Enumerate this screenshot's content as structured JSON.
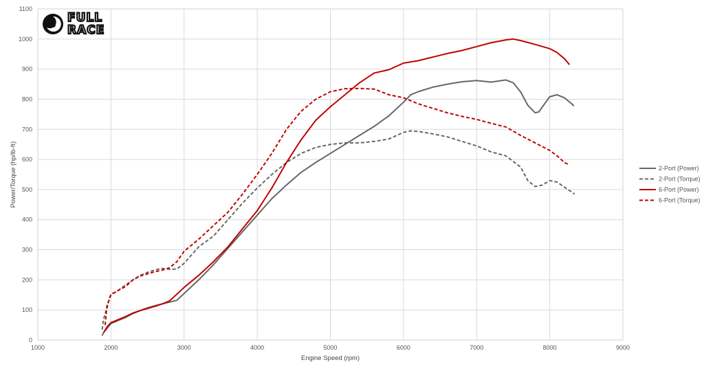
{
  "logo": {
    "line1": "FULL",
    "line2": "RACE"
  },
  "chart_data": {
    "type": "line",
    "xlabel": "Engine Speed (rpm)",
    "ylabel": "Power/Torque (hp/lb-ft)",
    "xlim": [
      1000,
      9000
    ],
    "ylim": [
      0,
      1100
    ],
    "xticks": [
      1000,
      2000,
      3000,
      4000,
      5000,
      6000,
      7000,
      8000,
      9000
    ],
    "yticks": [
      0,
      100,
      200,
      300,
      400,
      500,
      600,
      700,
      800,
      900,
      1000,
      1100
    ],
    "grid": true,
    "legend_position": "right",
    "series": [
      {
        "name": "2-Port (Power)",
        "color": "#666666",
        "dash": false,
        "points": [
          [
            1880,
            15
          ],
          [
            1900,
            25
          ],
          [
            1950,
            40
          ],
          [
            2000,
            55
          ],
          [
            2100,
            65
          ],
          [
            2200,
            75
          ],
          [
            2300,
            88
          ],
          [
            2400,
            98
          ],
          [
            2500,
            107
          ],
          [
            2600,
            114
          ],
          [
            2700,
            120
          ],
          [
            2800,
            126
          ],
          [
            2900,
            132
          ],
          [
            3000,
            155
          ],
          [
            3200,
            200
          ],
          [
            3400,
            250
          ],
          [
            3600,
            305
          ],
          [
            3800,
            360
          ],
          [
            4000,
            415
          ],
          [
            4200,
            470
          ],
          [
            4400,
            515
          ],
          [
            4600,
            557
          ],
          [
            4800,
            590
          ],
          [
            5000,
            620
          ],
          [
            5200,
            650
          ],
          [
            5400,
            680
          ],
          [
            5600,
            710
          ],
          [
            5800,
            745
          ],
          [
            6000,
            790
          ],
          [
            6100,
            815
          ],
          [
            6200,
            825
          ],
          [
            6400,
            840
          ],
          [
            6600,
            850
          ],
          [
            6800,
            858
          ],
          [
            7000,
            862
          ],
          [
            7200,
            857
          ],
          [
            7400,
            864
          ],
          [
            7500,
            855
          ],
          [
            7600,
            825
          ],
          [
            7700,
            780
          ],
          [
            7800,
            755
          ],
          [
            7850,
            758
          ],
          [
            7900,
            775
          ],
          [
            8000,
            808
          ],
          [
            8100,
            815
          ],
          [
            8200,
            805
          ],
          [
            8300,
            785
          ],
          [
            8330,
            778
          ]
        ]
      },
      {
        "name": "2-Port (Torque)",
        "color": "#666666",
        "dash": true,
        "points": [
          [
            1880,
            35
          ],
          [
            1900,
            70
          ],
          [
            1920,
            85
          ],
          [
            1940,
            110
          ],
          [
            1960,
            125
          ],
          [
            1980,
            135
          ],
          [
            2000,
            150
          ],
          [
            2100,
            165
          ],
          [
            2200,
            183
          ],
          [
            2300,
            200
          ],
          [
            2400,
            215
          ],
          [
            2500,
            225
          ],
          [
            2600,
            233
          ],
          [
            2700,
            238
          ],
          [
            2800,
            235
          ],
          [
            2900,
            236
          ],
          [
            3000,
            255
          ],
          [
            3200,
            310
          ],
          [
            3400,
            345
          ],
          [
            3600,
            400
          ],
          [
            3800,
            455
          ],
          [
            4000,
            505
          ],
          [
            4200,
            550
          ],
          [
            4400,
            590
          ],
          [
            4600,
            620
          ],
          [
            4800,
            640
          ],
          [
            5000,
            650
          ],
          [
            5200,
            655
          ],
          [
            5400,
            655
          ],
          [
            5600,
            660
          ],
          [
            5800,
            668
          ],
          [
            6000,
            690
          ],
          [
            6100,
            695
          ],
          [
            6200,
            693
          ],
          [
            6400,
            685
          ],
          [
            6600,
            675
          ],
          [
            6800,
            660
          ],
          [
            7000,
            645
          ],
          [
            7200,
            625
          ],
          [
            7400,
            612
          ],
          [
            7600,
            575
          ],
          [
            7700,
            530
          ],
          [
            7800,
            510
          ],
          [
            7900,
            515
          ],
          [
            8000,
            530
          ],
          [
            8100,
            525
          ],
          [
            8200,
            508
          ],
          [
            8300,
            492
          ],
          [
            8340,
            485
          ]
        ]
      },
      {
        "name": "6-Port (Power)",
        "color": "#c00000",
        "dash": false,
        "points": [
          [
            1900,
            25
          ],
          [
            1950,
            45
          ],
          [
            2000,
            58
          ],
          [
            2100,
            68
          ],
          [
            2200,
            78
          ],
          [
            2300,
            90
          ],
          [
            2400,
            98
          ],
          [
            2500,
            105
          ],
          [
            2600,
            112
          ],
          [
            2700,
            120
          ],
          [
            2800,
            130
          ],
          [
            2900,
            152
          ],
          [
            3000,
            175
          ],
          [
            3200,
            215
          ],
          [
            3400,
            260
          ],
          [
            3600,
            310
          ],
          [
            3800,
            370
          ],
          [
            4000,
            430
          ],
          [
            4200,
            505
          ],
          [
            4400,
            590
          ],
          [
            4600,
            665
          ],
          [
            4800,
            730
          ],
          [
            5000,
            775
          ],
          [
            5200,
            815
          ],
          [
            5400,
            855
          ],
          [
            5600,
            887
          ],
          [
            5800,
            898
          ],
          [
            6000,
            920
          ],
          [
            6200,
            928
          ],
          [
            6400,
            940
          ],
          [
            6600,
            952
          ],
          [
            6800,
            962
          ],
          [
            7000,
            975
          ],
          [
            7200,
            988
          ],
          [
            7400,
            997
          ],
          [
            7500,
            1000
          ],
          [
            7600,
            995
          ],
          [
            7800,
            982
          ],
          [
            8000,
            968
          ],
          [
            8100,
            955
          ],
          [
            8200,
            935
          ],
          [
            8270,
            915
          ]
        ]
      },
      {
        "name": "6-Port (Torque)",
        "color": "#c00000",
        "dash": true,
        "points": [
          [
            1920,
            50
          ],
          [
            1940,
            100
          ],
          [
            1960,
            120
          ],
          [
            1980,
            140
          ],
          [
            2000,
            152
          ],
          [
            2100,
            165
          ],
          [
            2200,
            178
          ],
          [
            2300,
            200
          ],
          [
            2400,
            213
          ],
          [
            2500,
            220
          ],
          [
            2600,
            227
          ],
          [
            2700,
            232
          ],
          [
            2800,
            240
          ],
          [
            2900,
            260
          ],
          [
            3000,
            295
          ],
          [
            3200,
            335
          ],
          [
            3400,
            380
          ],
          [
            3600,
            425
          ],
          [
            3800,
            485
          ],
          [
            4000,
            550
          ],
          [
            4200,
            620
          ],
          [
            4400,
            700
          ],
          [
            4600,
            760
          ],
          [
            4800,
            800
          ],
          [
            5000,
            825
          ],
          [
            5200,
            835
          ],
          [
            5400,
            836
          ],
          [
            5600,
            834
          ],
          [
            5800,
            815
          ],
          [
            6000,
            805
          ],
          [
            6200,
            785
          ],
          [
            6400,
            770
          ],
          [
            6600,
            755
          ],
          [
            6800,
            743
          ],
          [
            7000,
            733
          ],
          [
            7200,
            720
          ],
          [
            7400,
            708
          ],
          [
            7600,
            680
          ],
          [
            7800,
            655
          ],
          [
            8000,
            630
          ],
          [
            8100,
            612
          ],
          [
            8200,
            590
          ],
          [
            8270,
            582
          ]
        ]
      }
    ]
  }
}
